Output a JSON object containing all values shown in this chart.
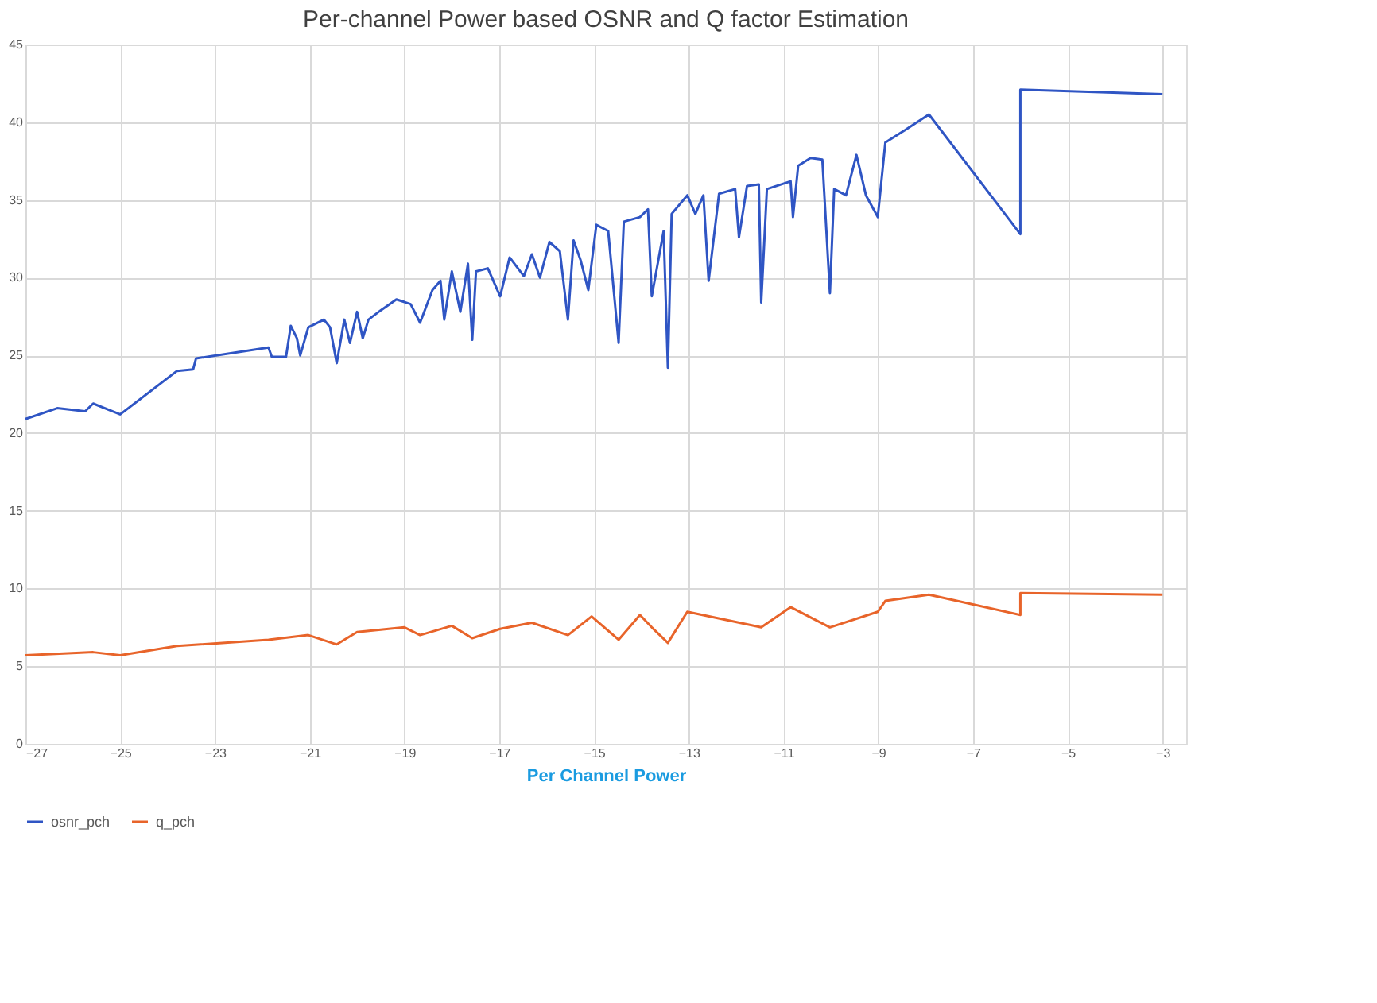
{
  "chart_data": {
    "type": "line",
    "title": "Per-channel Power based OSNR and Q factor Estimation",
    "xlabel": "Per Channel Power",
    "xlim": [
      -27,
      -2.5
    ],
    "xticks": [
      -27,
      -25,
      -23,
      -21,
      -19,
      -17,
      -15,
      -13,
      -11,
      -9,
      -7,
      -5,
      -3
    ],
    "ylim": [
      0,
      45
    ],
    "yticks": [
      0,
      5,
      10,
      15,
      20,
      25,
      30,
      35,
      40,
      45
    ],
    "grid": true,
    "legend": "bottom",
    "marker": "none",
    "line_style": "solid",
    "series": [
      {
        "name": "osnr_pch",
        "color": "#2f55c4",
        "x": [
          -27,
          -26.33,
          -25.74,
          -25.57,
          -25,
          -23.8,
          -23.46,
          -23.4,
          -21.87,
          -21.8,
          -21.5,
          -21.4,
          -21.27,
          -21.2,
          -21.03,
          -20.7,
          -20.57,
          -20.43,
          -20.27,
          -20.15,
          -20,
          -19.88,
          -19.76,
          -19.5,
          -19.17,
          -18.87,
          -18.67,
          -18.41,
          -18.24,
          -18.16,
          -18,
          -17.82,
          -17.66,
          -17.57,
          -17.49,
          -17.24,
          -16.98,
          -16.78,
          -16.48,
          -16.31,
          -16.14,
          -15.94,
          -15.72,
          -15.55,
          -15.43,
          -15.28,
          -15.12,
          -14.95,
          -14.7,
          -14.48,
          -14.37,
          -14.03,
          -13.86,
          -13.78,
          -13.53,
          -13.44,
          -13.36,
          -13.03,
          -12.86,
          -12.69,
          -12.58,
          -12.36,
          -12.02,
          -11.94,
          -11.77,
          -11.52,
          -11.47,
          -11.35,
          -10.85,
          -10.8,
          -10.69,
          -10.43,
          -10.18,
          -10.02,
          -9.93,
          -9.68,
          -9.46,
          -9.26,
          -9.01,
          -8.85,
          -8.43,
          -7.93,
          -6,
          -6,
          -3
        ],
        "values": [
          20.9,
          21.6,
          21.4,
          21.9,
          21.2,
          24.0,
          24.1,
          24.8,
          25.5,
          24.9,
          24.9,
          26.9,
          26.1,
          25.0,
          26.8,
          27.3,
          26.8,
          24.5,
          27.3,
          25.8,
          27.8,
          26.1,
          27.3,
          27.9,
          28.6,
          28.3,
          27.1,
          29.2,
          29.8,
          27.3,
          30.4,
          27.8,
          30.9,
          26.0,
          30.4,
          30.6,
          28.8,
          31.3,
          30.1,
          31.5,
          30.0,
          32.3,
          31.7,
          27.3,
          32.4,
          31.1,
          29.2,
          33.4,
          33.0,
          25.8,
          33.6,
          33.9,
          34.4,
          28.8,
          33.0,
          24.2,
          34.1,
          35.3,
          34.1,
          35.3,
          29.8,
          35.4,
          35.7,
          32.6,
          35.9,
          36.0,
          28.4,
          35.7,
          36.2,
          33.9,
          37.2,
          37.7,
          37.6,
          29.0,
          35.7,
          35.3,
          37.9,
          35.3,
          33.9,
          38.7,
          39.5,
          40.5,
          32.8,
          42.1,
          41.8
        ]
      },
      {
        "name": "q_pch",
        "color": "#e8642a",
        "x": [
          -27,
          -25.57,
          -25,
          -23.8,
          -21.87,
          -21.03,
          -20.43,
          -20,
          -19,
          -18.67,
          -18,
          -17.57,
          -16.98,
          -16.31,
          -15.55,
          -15.05,
          -14.48,
          -14.03,
          -13.78,
          -13.44,
          -13.03,
          -11.47,
          -10.85,
          -10.02,
          -9.01,
          -8.85,
          -7.93,
          -6,
          -6,
          -3
        ],
        "values": [
          5.7,
          5.9,
          5.7,
          6.3,
          6.7,
          7.0,
          6.4,
          7.2,
          7.5,
          7.0,
          7.6,
          6.8,
          7.4,
          7.8,
          7.0,
          8.2,
          6.7,
          8.3,
          7.5,
          6.5,
          8.5,
          7.5,
          8.8,
          7.5,
          8.5,
          9.2,
          9.6,
          8.3,
          9.7,
          9.6
        ]
      }
    ]
  }
}
